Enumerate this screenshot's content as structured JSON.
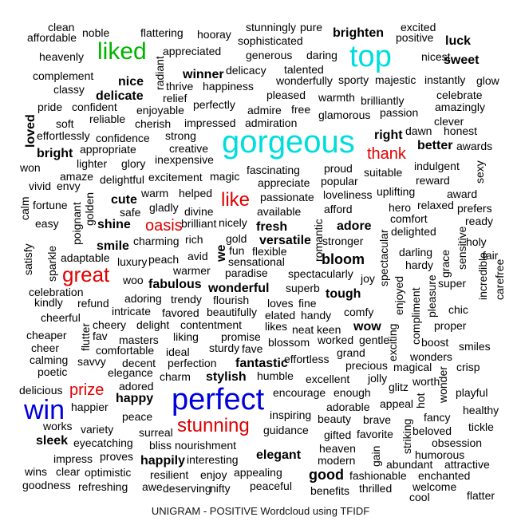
{
  "caption": "UNIGRAM - POSITIVE Wordcloud using TFIDF",
  "colors": {
    "top_rank": "#0000dd",
    "second_rank": "#e00000",
    "third_rank": "#00dddd",
    "fourth_rank": "#00b400",
    "rest": "#000000"
  },
  "words": [
    {
      "text": "clean"
    },
    {
      "text": "noble"
    },
    {
      "text": "flattering"
    },
    {
      "text": "stunningly"
    },
    {
      "text": "pure"
    },
    {
      "text": "excited"
    },
    {
      "text": "affordable"
    },
    {
      "text": "hooray"
    },
    {
      "text": "sophisticated"
    },
    {
      "text": "brighten"
    },
    {
      "text": "positive"
    },
    {
      "text": "luck"
    },
    {
      "text": "liked"
    },
    {
      "text": "appreciated"
    },
    {
      "text": "generous"
    },
    {
      "text": "daring"
    },
    {
      "text": "top"
    },
    {
      "text": "nicest"
    },
    {
      "text": "heavenly"
    },
    {
      "text": "sweet"
    },
    {
      "text": "talented"
    },
    {
      "text": "winner"
    },
    {
      "text": "delicacy"
    },
    {
      "text": "radiant"
    },
    {
      "text": "complement"
    },
    {
      "text": "wonderfully"
    },
    {
      "text": "sporty"
    },
    {
      "text": "majestic"
    },
    {
      "text": "instantly"
    },
    {
      "text": "glow"
    },
    {
      "text": "nice"
    },
    {
      "text": "thrive"
    },
    {
      "text": "happiness"
    },
    {
      "text": "classy"
    },
    {
      "text": "delicate"
    },
    {
      "text": "pleased"
    },
    {
      "text": "celebrate"
    },
    {
      "text": "relief"
    },
    {
      "text": "warmth"
    },
    {
      "text": "brilliantly"
    },
    {
      "text": "pride"
    },
    {
      "text": "confident"
    },
    {
      "text": "perfectly"
    },
    {
      "text": "admire"
    },
    {
      "text": "free"
    },
    {
      "text": "amazingly"
    },
    {
      "text": "enjoyable"
    },
    {
      "text": "glamorous"
    },
    {
      "text": "passion"
    },
    {
      "text": "soft"
    },
    {
      "text": "reliable"
    },
    {
      "text": "cherish"
    },
    {
      "text": "impressed"
    },
    {
      "text": "admiration"
    },
    {
      "text": "clever"
    },
    {
      "text": "loved"
    },
    {
      "text": "dawn"
    },
    {
      "text": "honest"
    },
    {
      "text": "effortlessly"
    },
    {
      "text": "confidence"
    },
    {
      "text": "strong"
    },
    {
      "text": "gorgeous"
    },
    {
      "text": "right"
    },
    {
      "text": "better"
    },
    {
      "text": "awards"
    },
    {
      "text": "bright"
    },
    {
      "text": "appropriate"
    },
    {
      "text": "creative"
    },
    {
      "text": "thank"
    },
    {
      "text": "lighter"
    },
    {
      "text": "inexpensive"
    },
    {
      "text": "glory"
    },
    {
      "text": "won"
    },
    {
      "text": "proud"
    },
    {
      "text": "indulgent"
    },
    {
      "text": "sexy"
    },
    {
      "text": "amaze"
    },
    {
      "text": "excitement"
    },
    {
      "text": "magic"
    },
    {
      "text": "fascinating"
    },
    {
      "text": "suitable"
    },
    {
      "text": "delightful"
    },
    {
      "text": "appreciate"
    },
    {
      "text": "popular"
    },
    {
      "text": "reward"
    },
    {
      "text": "vivid"
    },
    {
      "text": "envy"
    },
    {
      "text": "golden"
    },
    {
      "text": "calm"
    },
    {
      "text": "warm"
    },
    {
      "text": "helped"
    },
    {
      "text": "like"
    },
    {
      "text": "passionate"
    },
    {
      "text": "loveliness"
    },
    {
      "text": "uplifting"
    },
    {
      "text": "award"
    },
    {
      "text": "fortune"
    },
    {
      "text": "cute"
    },
    {
      "text": "gladly"
    },
    {
      "text": "divine"
    },
    {
      "text": "shine"
    },
    {
      "text": "hero"
    },
    {
      "text": "relaxed"
    },
    {
      "text": "prefers"
    },
    {
      "text": "poignant"
    },
    {
      "text": "safe"
    },
    {
      "text": "oasis"
    },
    {
      "text": "available"
    },
    {
      "text": "afford"
    },
    {
      "text": "comfort"
    },
    {
      "text": "easy"
    },
    {
      "text": "brilliant"
    },
    {
      "text": "nicely"
    },
    {
      "text": "fresh"
    },
    {
      "text": "adore"
    },
    {
      "text": "ready"
    },
    {
      "text": "delighted"
    },
    {
      "text": "smile"
    },
    {
      "text": "charming"
    },
    {
      "text": "rich"
    },
    {
      "text": "gold"
    },
    {
      "text": "versatile"
    },
    {
      "text": "stronger"
    },
    {
      "text": "sensitive"
    },
    {
      "text": "holy"
    },
    {
      "text": "satisfy"
    },
    {
      "text": "sparkle"
    },
    {
      "text": "adaptable"
    },
    {
      "text": "luxury"
    },
    {
      "text": "peach"
    },
    {
      "text": "avid"
    },
    {
      "text": "we"
    },
    {
      "text": "fun"
    },
    {
      "text": "flexible"
    },
    {
      "text": "romantic"
    },
    {
      "text": "spectacular"
    },
    {
      "text": "darling"
    },
    {
      "text": "grace"
    },
    {
      "text": "fair"
    },
    {
      "text": "great"
    },
    {
      "text": "warmer"
    },
    {
      "text": "sensational"
    },
    {
      "text": "bloom"
    },
    {
      "text": "hardy"
    },
    {
      "text": "woo"
    },
    {
      "text": "paradise"
    },
    {
      "text": "spectacularly"
    },
    {
      "text": "joy"
    },
    {
      "text": "incredible"
    },
    {
      "text": "carefree"
    },
    {
      "text": "fabulous"
    },
    {
      "text": "wonderful"
    },
    {
      "text": "superb"
    },
    {
      "text": "super"
    },
    {
      "text": "celebration"
    },
    {
      "text": "adoring"
    },
    {
      "text": "flourish"
    },
    {
      "text": "tough"
    },
    {
      "text": "enjoyed"
    },
    {
      "text": "pleasure"
    },
    {
      "text": "kindly"
    },
    {
      "text": "refund"
    },
    {
      "text": "trendy"
    },
    {
      "text": "loves"
    },
    {
      "text": "fine"
    },
    {
      "text": "compliment"
    },
    {
      "text": "chic"
    },
    {
      "text": "intricate"
    },
    {
      "text": "favored"
    },
    {
      "text": "beautifully"
    },
    {
      "text": "elated"
    },
    {
      "text": "handy"
    },
    {
      "text": "comfy"
    },
    {
      "text": "cheerful"
    },
    {
      "text": "cheery"
    },
    {
      "text": "delight"
    },
    {
      "text": "contentment"
    },
    {
      "text": "likes"
    },
    {
      "text": "wow"
    },
    {
      "text": "proper"
    },
    {
      "text": "cheaper"
    },
    {
      "text": "flutter"
    },
    {
      "text": "fav"
    },
    {
      "text": "liking"
    },
    {
      "text": "neat"
    },
    {
      "text": "keen"
    },
    {
      "text": "exciting"
    },
    {
      "text": "masters"
    },
    {
      "text": "promise"
    },
    {
      "text": "blossom"
    },
    {
      "text": "worked"
    },
    {
      "text": "gentle"
    },
    {
      "text": "boost"
    },
    {
      "text": "cheer"
    },
    {
      "text": "comfortable"
    },
    {
      "text": "sturdy"
    },
    {
      "text": "fave"
    },
    {
      "text": "smiles"
    },
    {
      "text": "ideal"
    },
    {
      "text": "grand"
    },
    {
      "text": "calming"
    },
    {
      "text": "savvy"
    },
    {
      "text": "decent"
    },
    {
      "text": "perfection"
    },
    {
      "text": "fantastic"
    },
    {
      "text": "effortless"
    },
    {
      "text": "wonders"
    },
    {
      "text": "poetic"
    },
    {
      "text": "elegance"
    },
    {
      "text": "charm"
    },
    {
      "text": "precious"
    },
    {
      "text": "magical"
    },
    {
      "text": "crisp"
    },
    {
      "text": "stylish"
    },
    {
      "text": "humble"
    },
    {
      "text": "jolly"
    },
    {
      "text": "worth"
    },
    {
      "text": "delicious"
    },
    {
      "text": "adored"
    },
    {
      "text": "excellent"
    },
    {
      "text": "glitz"
    },
    {
      "text": "hot"
    },
    {
      "text": "prize"
    },
    {
      "text": "happy"
    },
    {
      "text": "wonder"
    },
    {
      "text": "playful"
    },
    {
      "text": "win"
    },
    {
      "text": "perfect"
    },
    {
      "text": "encourage"
    },
    {
      "text": "enough"
    },
    {
      "text": "appeal"
    },
    {
      "text": "happier"
    },
    {
      "text": "adorable"
    },
    {
      "text": "healthy"
    },
    {
      "text": "peace"
    },
    {
      "text": "stunning"
    },
    {
      "text": "inspiring"
    },
    {
      "text": "beauty"
    },
    {
      "text": "brave"
    },
    {
      "text": "fancy"
    },
    {
      "text": "works"
    },
    {
      "text": "variety"
    },
    {
      "text": "surreal"
    },
    {
      "text": "guidance"
    },
    {
      "text": "gifted"
    },
    {
      "text": "favorite"
    },
    {
      "text": "beloved"
    },
    {
      "text": "tickle"
    },
    {
      "text": "sleek"
    },
    {
      "text": "eyecatching"
    },
    {
      "text": "bliss"
    },
    {
      "text": "nourishment"
    },
    {
      "text": "elegant"
    },
    {
      "text": "heaven"
    },
    {
      "text": "striking"
    },
    {
      "text": "obsession"
    },
    {
      "text": "impress"
    },
    {
      "text": "proves"
    },
    {
      "text": "happily"
    },
    {
      "text": "interesting"
    },
    {
      "text": "modern"
    },
    {
      "text": "gain"
    },
    {
      "text": "humorous"
    },
    {
      "text": "abundant"
    },
    {
      "text": "attractive"
    },
    {
      "text": "wins"
    },
    {
      "text": "clear"
    },
    {
      "text": "optimistic"
    },
    {
      "text": "resilient"
    },
    {
      "text": "enjoy"
    },
    {
      "text": "appealing"
    },
    {
      "text": "good"
    },
    {
      "text": "fashionable"
    },
    {
      "text": "enchanted"
    },
    {
      "text": "goodness"
    },
    {
      "text": "refreshing"
    },
    {
      "text": "awe"
    },
    {
      "text": "deserving"
    },
    {
      "text": "nifty"
    },
    {
      "text": "peaceful"
    },
    {
      "text": "benefits"
    },
    {
      "text": "thrilled"
    },
    {
      "text": "welcome"
    },
    {
      "text": "cool"
    },
    {
      "text": "flatter"
    }
  ]
}
